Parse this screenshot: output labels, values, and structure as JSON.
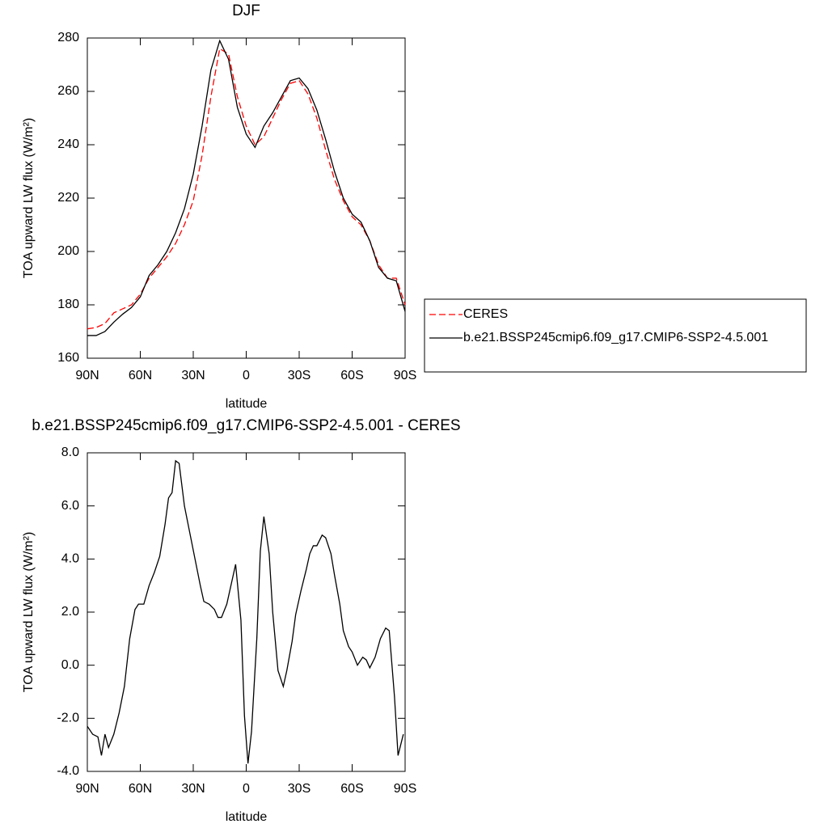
{
  "chart_data": [
    {
      "type": "line",
      "title": "DJF",
      "x_label": "latitude",
      "y_label": "TOA upward LW flux (W/m²)",
      "x": [
        90,
        85,
        80,
        75,
        70,
        65,
        60,
        55,
        50,
        45,
        40,
        35,
        30,
        25,
        20,
        15,
        10,
        5,
        0,
        -5,
        -10,
        -15,
        -20,
        -25,
        -30,
        -35,
        -40,
        -45,
        -50,
        -55,
        -60,
        -65,
        -70,
        -75,
        -80,
        -85,
        -90
      ],
      "series": [
        {
          "name": "CERES",
          "color": "#ff0000",
          "dashed": true,
          "values": [
            171,
            171.5,
            173,
            177,
            178.5,
            180,
            184,
            190,
            194,
            198,
            203,
            210,
            219,
            236,
            258,
            276,
            274,
            258,
            247,
            240,
            243,
            250,
            257,
            263,
            264,
            259,
            250,
            238,
            227,
            219,
            213,
            210,
            204,
            195,
            190,
            190,
            180
          ]
        },
        {
          "name": "b.e21.BSSP245cmip6.f09_g17.CMIP6-SSP2-4.5.001",
          "color": "#000000",
          "dashed": false,
          "values": [
            168.5,
            168.5,
            170,
            173.5,
            176.5,
            179,
            183,
            191,
            195,
            200,
            207,
            216,
            229,
            247,
            268,
            279,
            272,
            254,
            244,
            239,
            247,
            252,
            258,
            264,
            265,
            261,
            253,
            242,
            230,
            220,
            214,
            211,
            204,
            194,
            190,
            189,
            177.5
          ]
        }
      ],
      "xlim": [
        90,
        -90
      ],
      "xticks": [
        {
          "value": 90,
          "label": "90N"
        },
        {
          "value": 60,
          "label": "60N"
        },
        {
          "value": 30,
          "label": "30N"
        },
        0,
        {
          "value": -30,
          "label": "30S"
        },
        {
          "value": -60,
          "label": "60S"
        },
        {
          "value": -90,
          "label": "90S"
        }
      ],
      "ylim": [
        160,
        280
      ],
      "yticks": [
        160,
        180,
        200,
        220,
        240,
        260,
        280
      ],
      "legend": "right"
    },
    {
      "type": "line",
      "title": "b.e21.BSSP245cmip6.f09_g17.CMIP6-SSP2-4.5.001 - CERES",
      "x_label": "latitude",
      "y_label": "TOA upward LW flux (W/m²)",
      "x": [
        90,
        87,
        84,
        82,
        80,
        78,
        75,
        72,
        69,
        66,
        63,
        61,
        58,
        55,
        52,
        49,
        46,
        44,
        42,
        40,
        38,
        35,
        32,
        29,
        26,
        24,
        21,
        18,
        16,
        14,
        11,
        8,
        6,
        3,
        1,
        -1,
        -3,
        -6,
        -8,
        -10,
        -13,
        -15,
        -18,
        -21,
        -23,
        -26,
        -28,
        -31,
        -34,
        -36,
        -38,
        -40,
        -43,
        -45,
        -48,
        -50,
        -53,
        -55,
        -58,
        -60,
        -63,
        -66,
        -68,
        -70,
        -73,
        -76,
        -79,
        -81,
        -84,
        -86,
        -89
      ],
      "series": [
        {
          "color": "#000000",
          "dashed": false,
          "values": [
            -2.3,
            -2.6,
            -2.7,
            -3.4,
            -2.6,
            -3.1,
            -2.6,
            -1.8,
            -0.8,
            1.0,
            2.1,
            2.3,
            2.3,
            3.0,
            3.5,
            4.1,
            5.3,
            6.3,
            6.5,
            7.7,
            7.6,
            6.0,
            5.0,
            4.0,
            3.0,
            2.4,
            2.3,
            2.1,
            1.8,
            1.8,
            2.3,
            3.2,
            3.8,
            1.7,
            -1.9,
            -3.7,
            -2.5,
            1.0,
            4.3,
            5.6,
            4.2,
            2.0,
            -0.2,
            -0.8,
            -0.2,
            0.9,
            1.9,
            2.8,
            3.6,
            4.2,
            4.5,
            4.5,
            4.9,
            4.8,
            4.2,
            3.4,
            2.3,
            1.3,
            0.7,
            0.5,
            0.0,
            0.3,
            0.2,
            -0.1,
            0.3,
            1.0,
            1.4,
            1.3,
            -1.2,
            -3.4,
            -2.6
          ]
        }
      ],
      "xlim": [
        90,
        -90
      ],
      "xticks": [
        {
          "value": 90,
          "label": "90N"
        },
        {
          "value": 60,
          "label": "60N"
        },
        {
          "value": 30,
          "label": "30N"
        },
        0,
        {
          "value": -30,
          "label": "30S"
        },
        {
          "value": -60,
          "label": "60S"
        },
        {
          "value": -90,
          "label": "90S"
        }
      ],
      "ylim": [
        -4,
        8
      ],
      "yticks": [
        {
          "value": -4,
          "label": "-4.0"
        },
        {
          "value": -2,
          "label": "-2.0"
        },
        {
          "value": 0,
          "label": "0.0"
        },
        {
          "value": 2,
          "label": "2.0"
        },
        {
          "value": 4,
          "label": "4.0"
        },
        {
          "value": 6,
          "label": "6.0"
        },
        {
          "value": 8,
          "label": "8.0"
        }
      ]
    }
  ]
}
